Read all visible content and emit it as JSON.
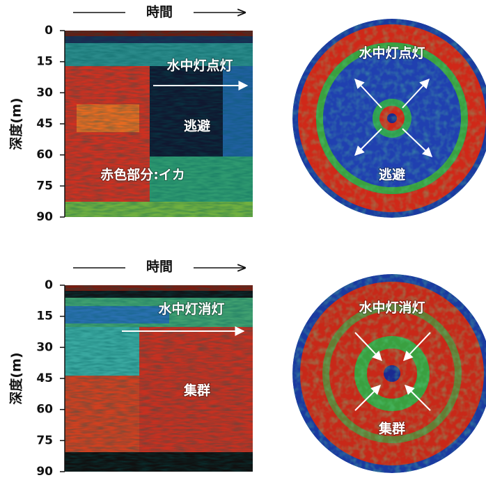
{
  "panels": [
    {
      "time_label": "時間",
      "depth_label": "深度(m)",
      "depth_ticks": [
        0,
        15,
        30,
        45,
        60,
        75,
        90
      ],
      "echogram_labels": [
        "水中灯点灯",
        "逃避",
        "赤色部分:イカ"
      ],
      "sonar_labels": [
        "水中灯点灯",
        "逃避"
      ]
    },
    {
      "time_label": "時間",
      "depth_label": "深度(m)",
      "depth_ticks": [
        0,
        15,
        30,
        45,
        60,
        75,
        90
      ],
      "echogram_labels": [
        "水中灯消灯",
        "集群"
      ],
      "sonar_labels": [
        "水中灯消灯",
        "集群"
      ]
    }
  ]
}
